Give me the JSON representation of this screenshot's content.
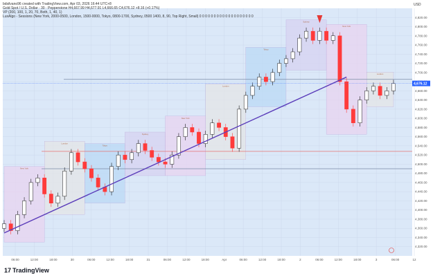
{
  "header": {
    "author_line": "bdsilvano96 created with TradingView.com, Apr 03, 2026 16:44 UTC+8",
    "symbol_line": "Gold Spot / U.S. Dollar · 30 · Pepperstone  H4,667.99  H4,677.91  L4,666.65  C4,676.12  +8.16 (+0.17%)",
    "vp_line": "VP (200, 100, 1, 20, 70, Both, 1, 40, 1)",
    "luxalgo_line": "LuxAlgo - Sessions (New York, 2000-0500, London, 1500-0000, Tokyo, 0800-1700, Sydney, 0500 1400, 8, 90, Top Right, Small)  0 0 0 0 0 0 0 0 0 0 0 0 0 0 0 0 0 0 0"
  },
  "price_scale": {
    "currency": "USD",
    "current_price": "4,676.12",
    "current_color": "#2962ff"
  },
  "brand": {
    "mark": "17",
    "name": "TradingView"
  },
  "session_box_labels": [
    "New York",
    "London",
    "Tokyo",
    "Sydney"
  ],
  "colors": {
    "background": "#dbe8f8",
    "up": "#1a1a1a",
    "down": "#ff3b3b",
    "trendline": "#5b3dba",
    "level_line": "#7a8aa6",
    "resistance_line": "#e57373",
    "arrow": "#e53935"
  },
  "chart_data": {
    "type": "candlestick",
    "symbol": "Gold Spot / U.S. Dollar",
    "timeframe": "30",
    "ylim": [
      4300,
      4840
    ],
    "y_ticks": [
      4320,
      4340,
      4360,
      4380,
      4400,
      4420,
      4440,
      4460,
      4480,
      4500,
      4520,
      4540,
      4560,
      4580,
      4600,
      4620,
      4640,
      4660,
      4680,
      4700,
      4720,
      4740,
      4760,
      4780,
      4800,
      4820
    ],
    "x_tick_labels": [
      "06:00",
      "12:00",
      "18:00",
      "30",
      "06:00",
      "12:00",
      "18:00",
      "31",
      "06:00",
      "12:00",
      "18:00",
      "Apr",
      "06:00",
      "12:00",
      "18:00",
      "2",
      "06:00",
      "12:00",
      "18:00",
      "3",
      "06:00",
      "12"
    ],
    "closes": [
      4370,
      4355,
      4390,
      4420,
      4460,
      4470,
      4435,
      4415,
      4430,
      4485,
      4525,
      4505,
      4490,
      4470,
      4450,
      4440,
      4495,
      4520,
      4510,
      4525,
      4545,
      4530,
      4515,
      4505,
      4500,
      4520,
      4560,
      4580,
      4570,
      4545,
      4565,
      4590,
      4580,
      4560,
      4535,
      4620,
      4650,
      4670,
      4690,
      4680,
      4700,
      4720,
      4730,
      4745,
      4775,
      4790,
      4770,
      4790,
      4770,
      4780,
      4680,
      4620,
      4590,
      4640,
      4660,
      4670,
      4650,
      4660,
      4676
    ],
    "trendline": {
      "from": [
        0,
        4350
      ],
      "to": [
        51,
        4690
      ]
    },
    "horizontal_levels": [
      4685,
      4528,
      4490
    ],
    "last_price": 4676.12
  }
}
